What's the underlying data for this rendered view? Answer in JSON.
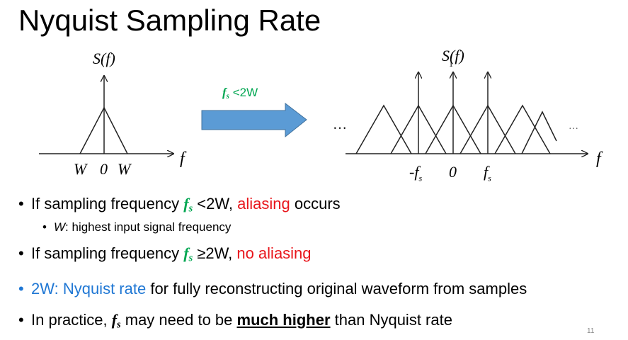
{
  "title": "Nyquist Sampling Rate",
  "left_plot": {
    "ylabel": "S(f)",
    "xlabel": "f",
    "ticks": [
      "W",
      "0",
      "W"
    ]
  },
  "arrow": {
    "label_var": "f",
    "label_sub": "s",
    "label_rest": "<2W",
    "color": "#5b9bd5"
  },
  "right_plot": {
    "ylabel": "S(f)",
    "ylabel_sub": "1",
    "xlabel": "f",
    "ticks": [
      "-f",
      "0",
      "f"
    ],
    "tick_sub": "s",
    "ellipsis_left": "…",
    "ellipsis_right": "…"
  },
  "bullets": [
    {
      "pre": "If sampling frequency ",
      "fs": "f",
      "fs_sub": "s",
      "mid": " <2W, ",
      "red": "aliasing",
      "post": " occurs"
    },
    {
      "var": "W",
      "text": ": highest input signal frequency"
    },
    {
      "pre": "If sampling frequency ",
      "fs": "f",
      "fs_sub": "s",
      "mid": " ≥2W, ",
      "red": "no aliasing"
    },
    {
      "blue": "2W: Nyquist rate",
      "post": " for fully reconstructing original waveform from samples"
    },
    {
      "pre": "In practice, ",
      "fs": "f",
      "fs_sub": "s",
      "mid": " may need to be ",
      "bold": "much higher",
      "post": " than Nyquist rate"
    }
  ],
  "bullet_char": "•",
  "page_number": "11",
  "colors": {
    "green": "#00a651",
    "red": "#e8151b",
    "blue": "#1f77d4"
  }
}
